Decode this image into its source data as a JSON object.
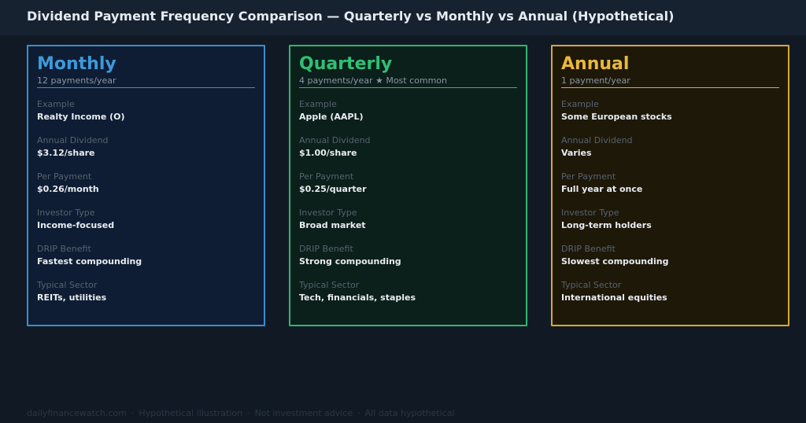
{
  "page": {
    "title": "Dividend Payment Frequency Comparison — Quarterly vs Monthly vs Annual  (Hypothetical)"
  },
  "cards": [
    {
      "name": "Monthly",
      "subtitle": "12 payments/year",
      "accent": "#3a8ed0",
      "fields": [
        {
          "label": "Example",
          "value": "Realty Income (O)"
        },
        {
          "label": "Annual Dividend",
          "value": "$3.12/share"
        },
        {
          "label": "Per Payment",
          "value": "$0.26/month"
        },
        {
          "label": "Investor Type",
          "value": "Income-focused"
        },
        {
          "label": "DRIP Benefit",
          "value": "Fastest compounding"
        },
        {
          "label": "Typical Sector",
          "value": "REITs, utilities"
        }
      ]
    },
    {
      "name": "Quarterly",
      "subtitle": "4 payments/year  ★ Most common",
      "accent": "#2db872",
      "fields": [
        {
          "label": "Example",
          "value": "Apple (AAPL)"
        },
        {
          "label": "Annual Dividend",
          "value": "$1.00/share"
        },
        {
          "label": "Per Payment",
          "value": "$0.25/quarter"
        },
        {
          "label": "Investor Type",
          "value": "Broad market"
        },
        {
          "label": "DRIP Benefit",
          "value": "Strong compounding"
        },
        {
          "label": "Typical Sector",
          "value": "Tech, financials, staples"
        }
      ]
    },
    {
      "name": "Annual",
      "subtitle": "1 payment/year",
      "accent": "#d8aa35",
      "fields": [
        {
          "label": "Example",
          "value": "Some European stocks"
        },
        {
          "label": "Annual Dividend",
          "value": "Varies"
        },
        {
          "label": "Per Payment",
          "value": "Full year at once"
        },
        {
          "label": "Investor Type",
          "value": "Long-term holders"
        },
        {
          "label": "DRIP Benefit",
          "value": "Slowest compounding"
        },
        {
          "label": "Typical Sector",
          "value": "International equities"
        }
      ]
    }
  ],
  "footer": {
    "items": [
      "dailyfinancewatch.com",
      "Hypothetical illustration",
      "Not investment advice",
      "All data hypothetical"
    ],
    "separator": "·"
  }
}
